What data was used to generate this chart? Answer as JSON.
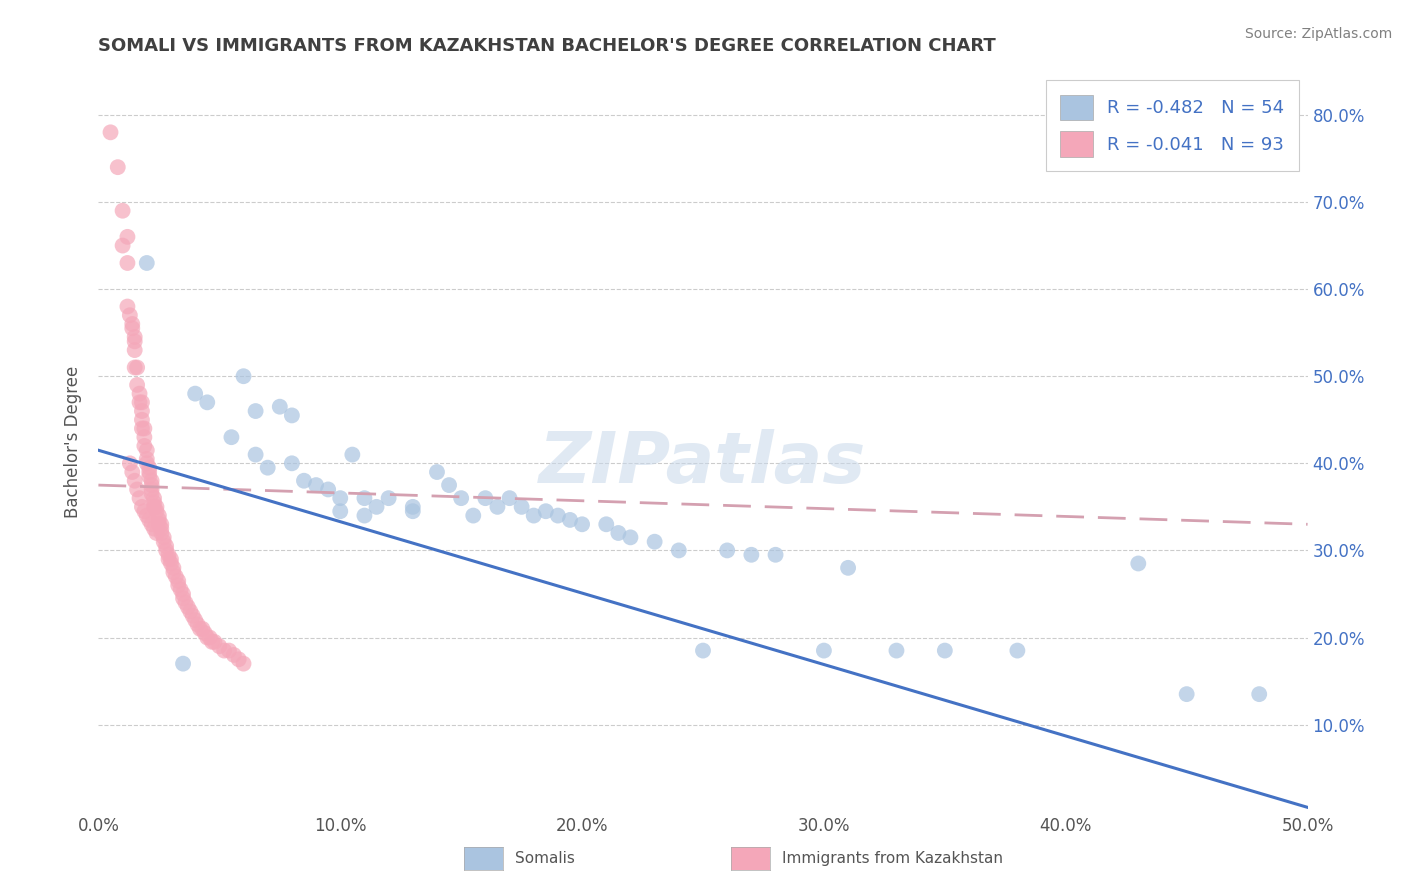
{
  "title": "SOMALI VS IMMIGRANTS FROM KAZAKHSTAN BACHELOR'S DEGREE CORRELATION CHART",
  "source": "Source: ZipAtlas.com",
  "xlabel_somali": "Somalis",
  "xlabel_kazakhstan": "Immigrants from Kazakhstan",
  "ylabel": "Bachelor's Degree",
  "watermark": "ZIPatlas",
  "legend": {
    "somali_R": "R = -0.482",
    "somali_N": "N = 54",
    "kazakhstan_R": "R = -0.041",
    "kazakhstan_N": "N = 93"
  },
  "xlim": [
    0.0,
    0.5
  ],
  "ylim": [
    0.0,
    0.85
  ],
  "right_yticks": [
    0.1,
    0.2,
    0.3,
    0.4,
    0.5,
    0.6,
    0.7,
    0.8
  ],
  "right_ytick_labels": [
    "10.0%",
    "20.0%",
    "30.0%",
    "40.0%",
    "50.0%",
    "60.0%",
    "70.0%",
    "80.0%"
  ],
  "bottom_xticks": [
    0.0,
    0.1,
    0.2,
    0.3,
    0.4,
    0.5
  ],
  "bottom_xtick_labels": [
    "0.0%",
    "10.0%",
    "20.0%",
    "30.0%",
    "40.0%",
    "50.0%"
  ],
  "somali_color": "#aac4e0",
  "kazakhstan_color": "#f4a7b9",
  "somali_line_color": "#4472c4",
  "kazakhstan_line_color": "#d4a0b0",
  "somali_scatter": [
    [
      0.02,
      0.63
    ],
    [
      0.035,
      0.17
    ],
    [
      0.04,
      0.48
    ],
    [
      0.045,
      0.47
    ],
    [
      0.055,
      0.43
    ],
    [
      0.06,
      0.5
    ],
    [
      0.065,
      0.46
    ],
    [
      0.065,
      0.41
    ],
    [
      0.07,
      0.395
    ],
    [
      0.075,
      0.465
    ],
    [
      0.08,
      0.455
    ],
    [
      0.08,
      0.4
    ],
    [
      0.085,
      0.38
    ],
    [
      0.09,
      0.375
    ],
    [
      0.095,
      0.37
    ],
    [
      0.1,
      0.36
    ],
    [
      0.1,
      0.345
    ],
    [
      0.105,
      0.41
    ],
    [
      0.11,
      0.36
    ],
    [
      0.11,
      0.34
    ],
    [
      0.115,
      0.35
    ],
    [
      0.12,
      0.36
    ],
    [
      0.13,
      0.35
    ],
    [
      0.13,
      0.345
    ],
    [
      0.14,
      0.39
    ],
    [
      0.145,
      0.375
    ],
    [
      0.15,
      0.36
    ],
    [
      0.155,
      0.34
    ],
    [
      0.16,
      0.36
    ],
    [
      0.165,
      0.35
    ],
    [
      0.17,
      0.36
    ],
    [
      0.175,
      0.35
    ],
    [
      0.18,
      0.34
    ],
    [
      0.185,
      0.345
    ],
    [
      0.19,
      0.34
    ],
    [
      0.195,
      0.335
    ],
    [
      0.2,
      0.33
    ],
    [
      0.21,
      0.33
    ],
    [
      0.215,
      0.32
    ],
    [
      0.22,
      0.315
    ],
    [
      0.23,
      0.31
    ],
    [
      0.24,
      0.3
    ],
    [
      0.25,
      0.185
    ],
    [
      0.26,
      0.3
    ],
    [
      0.27,
      0.295
    ],
    [
      0.28,
      0.295
    ],
    [
      0.3,
      0.185
    ],
    [
      0.31,
      0.28
    ],
    [
      0.33,
      0.185
    ],
    [
      0.35,
      0.185
    ],
    [
      0.38,
      0.185
    ],
    [
      0.43,
      0.285
    ],
    [
      0.45,
      0.135
    ],
    [
      0.48,
      0.135
    ]
  ],
  "kazakhstan_scatter": [
    [
      0.005,
      0.78
    ],
    [
      0.008,
      0.74
    ],
    [
      0.01,
      0.69
    ],
    [
      0.01,
      0.65
    ],
    [
      0.012,
      0.66
    ],
    [
      0.012,
      0.63
    ],
    [
      0.012,
      0.58
    ],
    [
      0.013,
      0.57
    ],
    [
      0.014,
      0.56
    ],
    [
      0.014,
      0.555
    ],
    [
      0.015,
      0.545
    ],
    [
      0.015,
      0.54
    ],
    [
      0.015,
      0.53
    ],
    [
      0.015,
      0.51
    ],
    [
      0.016,
      0.51
    ],
    [
      0.016,
      0.49
    ],
    [
      0.017,
      0.48
    ],
    [
      0.017,
      0.47
    ],
    [
      0.018,
      0.47
    ],
    [
      0.018,
      0.46
    ],
    [
      0.018,
      0.45
    ],
    [
      0.018,
      0.44
    ],
    [
      0.019,
      0.44
    ],
    [
      0.019,
      0.43
    ],
    [
      0.019,
      0.42
    ],
    [
      0.02,
      0.415
    ],
    [
      0.02,
      0.405
    ],
    [
      0.02,
      0.4
    ],
    [
      0.021,
      0.395
    ],
    [
      0.021,
      0.39
    ],
    [
      0.021,
      0.385
    ],
    [
      0.022,
      0.38
    ],
    [
      0.022,
      0.375
    ],
    [
      0.022,
      0.37
    ],
    [
      0.022,
      0.365
    ],
    [
      0.023,
      0.36
    ],
    [
      0.023,
      0.355
    ],
    [
      0.023,
      0.35
    ],
    [
      0.024,
      0.35
    ],
    [
      0.024,
      0.345
    ],
    [
      0.025,
      0.34
    ],
    [
      0.025,
      0.335
    ],
    [
      0.025,
      0.33
    ],
    [
      0.026,
      0.33
    ],
    [
      0.026,
      0.325
    ],
    [
      0.026,
      0.32
    ],
    [
      0.027,
      0.315
    ],
    [
      0.027,
      0.31
    ],
    [
      0.028,
      0.305
    ],
    [
      0.028,
      0.3
    ],
    [
      0.029,
      0.295
    ],
    [
      0.029,
      0.29
    ],
    [
      0.03,
      0.29
    ],
    [
      0.03,
      0.285
    ],
    [
      0.031,
      0.28
    ],
    [
      0.031,
      0.275
    ],
    [
      0.032,
      0.27
    ],
    [
      0.033,
      0.265
    ],
    [
      0.033,
      0.26
    ],
    [
      0.034,
      0.255
    ],
    [
      0.035,
      0.25
    ],
    [
      0.035,
      0.245
    ],
    [
      0.036,
      0.24
    ],
    [
      0.037,
      0.235
    ],
    [
      0.038,
      0.23
    ],
    [
      0.039,
      0.225
    ],
    [
      0.04,
      0.22
    ],
    [
      0.041,
      0.215
    ],
    [
      0.042,
      0.21
    ],
    [
      0.043,
      0.21
    ],
    [
      0.044,
      0.205
    ],
    [
      0.045,
      0.2
    ],
    [
      0.046,
      0.2
    ],
    [
      0.047,
      0.195
    ],
    [
      0.048,
      0.195
    ],
    [
      0.05,
      0.19
    ],
    [
      0.052,
      0.185
    ],
    [
      0.054,
      0.185
    ],
    [
      0.056,
      0.18
    ],
    [
      0.058,
      0.175
    ],
    [
      0.06,
      0.17
    ],
    [
      0.013,
      0.4
    ],
    [
      0.014,
      0.39
    ],
    [
      0.015,
      0.38
    ],
    [
      0.016,
      0.37
    ],
    [
      0.017,
      0.36
    ],
    [
      0.018,
      0.35
    ],
    [
      0.019,
      0.345
    ],
    [
      0.02,
      0.34
    ],
    [
      0.021,
      0.335
    ],
    [
      0.022,
      0.33
    ],
    [
      0.023,
      0.325
    ],
    [
      0.024,
      0.32
    ]
  ],
  "grid_color": "#cccccc",
  "bg_color": "#ffffff",
  "title_color": "#404040",
  "source_color": "#808080"
}
